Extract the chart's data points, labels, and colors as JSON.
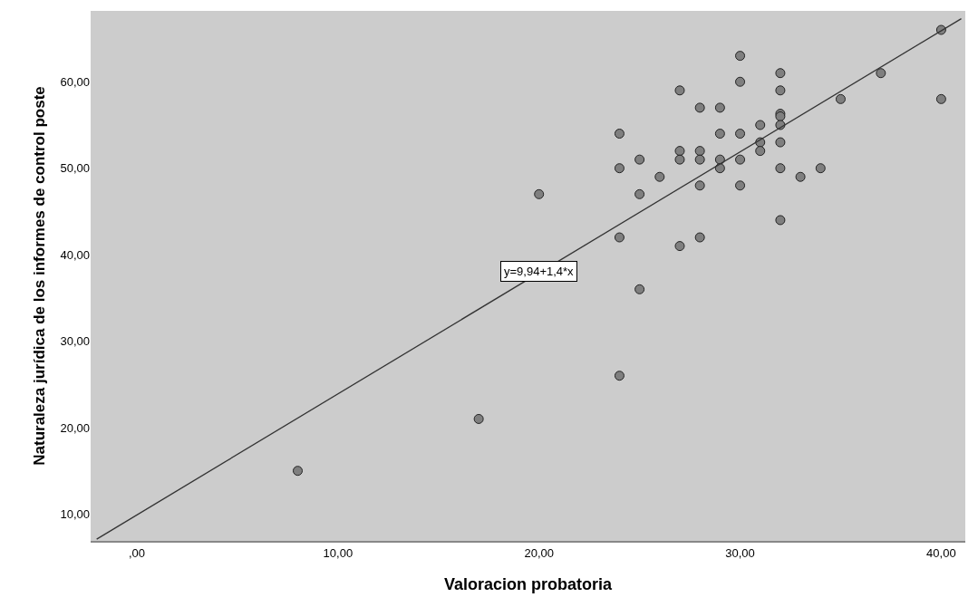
{
  "chart_data": {
    "type": "scatter",
    "xlabel": "Valoracion probatoria",
    "ylabel": "Naturaleza jurídica de los informes de control poste",
    "xlim": [
      -2.3,
      41.2
    ],
    "ylim": [
      6.9,
      68.2
    ],
    "xticks": [
      {
        "value": 0,
        "label": ",00"
      },
      {
        "value": 10,
        "label": "10,00"
      },
      {
        "value": 20,
        "label": "20,00"
      },
      {
        "value": 30,
        "label": "30,00"
      },
      {
        "value": 40,
        "label": "40,00"
      }
    ],
    "yticks": [
      {
        "value": 10,
        "label": "10,00"
      },
      {
        "value": 20,
        "label": "20,00"
      },
      {
        "value": 30,
        "label": "30,00"
      },
      {
        "value": 40,
        "label": "40,00"
      },
      {
        "value": 50,
        "label": "50,00"
      },
      {
        "value": 60,
        "label": "60,00"
      }
    ],
    "grid": false,
    "legend": false,
    "marker": "circle",
    "series": [
      {
        "color": "#7f7f7f",
        "x": [
          8,
          17,
          20,
          24,
          24,
          24,
          24,
          25,
          25,
          25,
          26,
          27,
          27,
          27,
          27,
          28,
          28,
          28,
          28,
          28,
          29,
          29,
          29,
          29,
          30,
          30,
          30,
          30,
          30,
          31,
          31,
          31,
          32,
          32,
          32,
          32,
          32,
          32,
          32,
          32,
          33,
          34,
          35,
          37,
          40,
          40
        ],
        "values": [
          15,
          21,
          47,
          54,
          50,
          42,
          26,
          51,
          47,
          36,
          49,
          59,
          52,
          51,
          41,
          57,
          52,
          51,
          48,
          42,
          57,
          54,
          51,
          50,
          63,
          60,
          54,
          51,
          48,
          55,
          53,
          52,
          61,
          59,
          56.3,
          56,
          55,
          53,
          50,
          44,
          49,
          50,
          58,
          61,
          66,
          58
        ]
      },
      {
        "type": "line",
        "marker": "none",
        "color": "#333333",
        "x": [
          -2,
          41
        ],
        "values": [
          7.1,
          67.3
        ]
      }
    ],
    "annotations": [
      {
        "text": "y=9,94+1,4*x",
        "x": 20,
        "y": 38.1
      }
    ]
  }
}
